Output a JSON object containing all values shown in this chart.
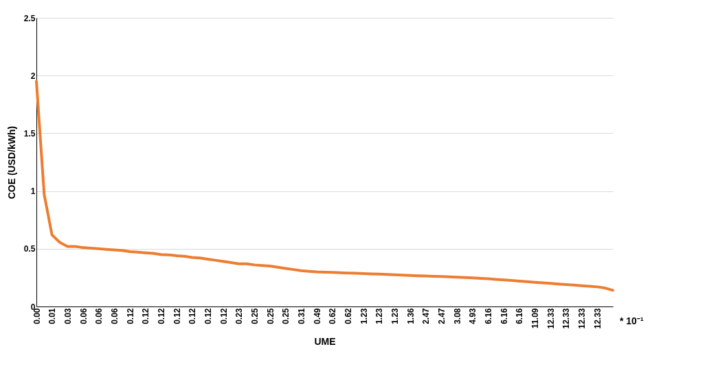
{
  "chart_data": {
    "type": "line",
    "xlabel": "UME",
    "ylabel": "COE (USD/kWh)",
    "categories": [
      "0.00",
      null,
      "0.01",
      null,
      "0.03",
      null,
      "0.06",
      null,
      "0.06",
      null,
      "0.06",
      null,
      "0.12",
      null,
      "0.12",
      null,
      "0.12",
      null,
      "0.12",
      null,
      "0.12",
      null,
      "0.12",
      null,
      "0.12",
      null,
      "0.23",
      null,
      "0.25",
      null,
      "0.25",
      null,
      "0.25",
      null,
      "0.31",
      null,
      "0.49",
      null,
      "0.62",
      null,
      "0.62",
      null,
      "1.23",
      null,
      "1.23",
      null,
      "1.23",
      null,
      "1.36",
      null,
      "2.47",
      null,
      "2.47",
      null,
      "3.08",
      null,
      "4.93",
      null,
      "6.16",
      null,
      "6.16",
      null,
      "6.16",
      null,
      "11.09",
      null,
      "12.33",
      null,
      "12.33",
      null,
      "12.33",
      null,
      "12.33",
      null,
      null
    ],
    "series": [
      {
        "color": "#ed7d31",
        "values": [
          1.95,
          0.97,
          0.62,
          0.555,
          0.52,
          0.52,
          0.51,
          0.505,
          0.5,
          0.495,
          0.49,
          0.485,
          0.475,
          0.47,
          0.465,
          0.46,
          0.45,
          0.447,
          0.44,
          0.435,
          0.425,
          0.42,
          0.41,
          0.4,
          0.39,
          0.38,
          0.37,
          0.37,
          0.36,
          0.355,
          0.35,
          0.34,
          0.33,
          0.32,
          0.31,
          0.305,
          0.3,
          0.297,
          0.295,
          0.292,
          0.29,
          0.288,
          0.285,
          0.282,
          0.28,
          0.277,
          0.274,
          0.271,
          0.268,
          0.266,
          0.264,
          0.262,
          0.26,
          0.257,
          0.254,
          0.251,
          0.248,
          0.244,
          0.24,
          0.235,
          0.23,
          0.225,
          0.22,
          0.215,
          0.21,
          0.205,
          0.2,
          0.195,
          0.19,
          0.185,
          0.18,
          0.175,
          0.17,
          0.16,
          0.14
        ]
      }
    ],
    "ylim": [
      0,
      2.5
    ],
    "yticks": [
      0,
      0.5,
      1,
      1.5,
      2,
      2.5
    ],
    "grid": "y",
    "marker": "none",
    "line_style": "solid",
    "annotations": [
      "* 10⁻¹"
    ]
  }
}
